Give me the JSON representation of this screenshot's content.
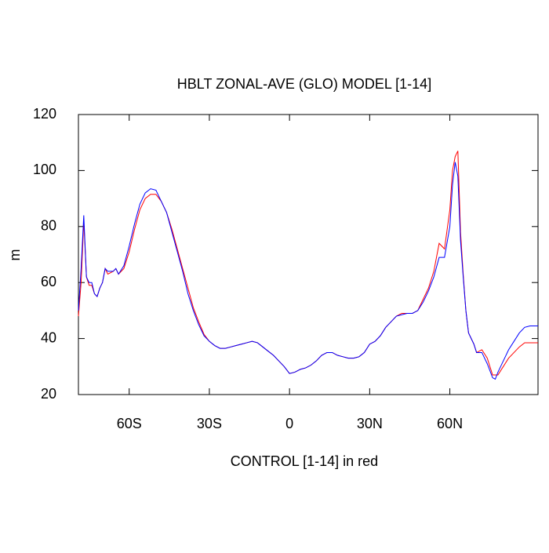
{
  "chart_data": {
    "type": "line",
    "title": "HBLT ZONAL-AVE (GLO) MODEL [1-14]",
    "x_label": "CONTROL [1-14] in red",
    "y_label": "m",
    "x": [
      -79,
      -78,
      -77,
      -76,
      -75,
      -74,
      -73,
      -72,
      -71,
      -70,
      -69,
      -68,
      -66,
      -65,
      -64,
      -62,
      -60,
      -58,
      -56,
      -54,
      -52,
      -50,
      -48,
      -46,
      -44,
      -42,
      -40,
      -38,
      -36,
      -34,
      -32,
      -30,
      -28,
      -26,
      -24,
      -22,
      -20,
      -18,
      -16,
      -14,
      -12,
      -10,
      -8,
      -6,
      -4,
      -2,
      0,
      2,
      4,
      6,
      8,
      10,
      12,
      14,
      16,
      18,
      20,
      22,
      24,
      26,
      28,
      30,
      32,
      34,
      36,
      38,
      40,
      42,
      44,
      46,
      48,
      50,
      52,
      54,
      56,
      58,
      60,
      61,
      62,
      63,
      64,
      65,
      66,
      67,
      68,
      69,
      70,
      72,
      74,
      76,
      77,
      78,
      80,
      82,
      84,
      86,
      88,
      90,
      93
    ],
    "series": [
      {
        "color": "#ff0000",
        "values": [
          48,
          60,
          82,
          62,
          59,
          59,
          56,
          55,
          58,
          60,
          65,
          63,
          64,
          65,
          63,
          65,
          71,
          79,
          86,
          90,
          91.5,
          91.5,
          89,
          85,
          79,
          72,
          65,
          58,
          51,
          46,
          41.5,
          39,
          37.5,
          36.5,
          36.5,
          37,
          37.5,
          38,
          38.5,
          39,
          38.5,
          37,
          35.5,
          34,
          32,
          30,
          27.5,
          28,
          29,
          29.5,
          30.5,
          32,
          34,
          35,
          35,
          34,
          33.5,
          33,
          33,
          33.5,
          35,
          38,
          39,
          41,
          44,
          46,
          48,
          49,
          49,
          49,
          50,
          54,
          58,
          64,
          74,
          72,
          86,
          100,
          105,
          107,
          78,
          63,
          50,
          42,
          40,
          38,
          35,
          36,
          33,
          27,
          27,
          27,
          30,
          33,
          35,
          37,
          38.5,
          38.5,
          38.5
        ]
      },
      {
        "color": "#0000ff",
        "values": [
          50,
          65,
          84,
          62,
          60,
          60,
          56,
          55,
          58,
          60,
          65,
          64,
          64,
          65,
          63,
          66,
          73,
          81,
          88,
          92,
          93.5,
          93,
          89,
          85,
          78,
          71,
          64,
          56,
          50,
          45,
          41,
          39,
          37.5,
          36.5,
          36.5,
          37,
          37.5,
          38,
          38.5,
          39,
          38.5,
          37,
          35.5,
          34,
          32,
          30,
          27.5,
          28,
          29,
          29.5,
          30.5,
          32,
          34,
          35,
          35,
          34,
          33.5,
          33,
          33,
          33.5,
          35,
          38,
          39,
          41,
          44,
          46,
          48,
          48.5,
          49,
          49,
          50,
          53,
          57,
          62,
          69,
          69,
          80,
          95,
          103,
          98,
          75,
          62,
          50,
          42,
          40,
          38,
          35,
          35,
          31,
          26,
          25.5,
          28,
          32,
          36,
          39,
          42,
          44,
          44.5,
          44.5
        ]
      }
    ],
    "xlim": [
      -79,
      93
    ],
    "xticks": [
      {
        "value": -60,
        "label": "60S"
      },
      {
        "value": -30,
        "label": "30S"
      },
      0,
      {
        "value": 30,
        "label": "30N"
      },
      {
        "value": 60,
        "label": "60N"
      }
    ],
    "ylim": [
      20,
      120
    ],
    "yticks": [
      20,
      40,
      60,
      80,
      100,
      120
    ]
  }
}
